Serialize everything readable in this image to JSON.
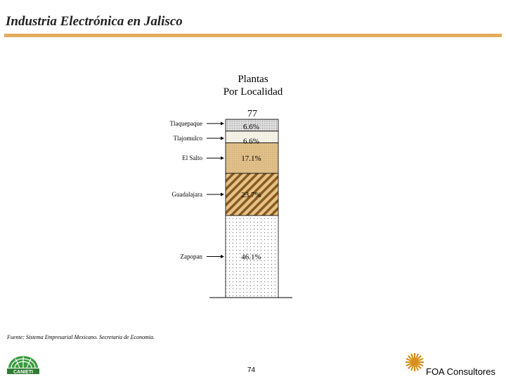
{
  "slide": {
    "title": "Industria Electrónica en Jalisco",
    "source_note": "Fuente: Sistema Empresarial Mexicano. Secretaria de Economia.",
    "page_number": "74",
    "brand_right": "FOA Consultores",
    "brand_left": "CANIETI"
  },
  "colors": {
    "title_rule": "#e3ad5c",
    "tan": "#e3c28b",
    "brown": "#8a5a1c",
    "fill_light": "#f6f3ea"
  },
  "chart_data": {
    "type": "bar",
    "stacked": true,
    "title": "Plantas",
    "subtitle": "Por Localidad",
    "total_label": "77",
    "total": 77,
    "segments": [
      {
        "label": "Zapopan",
        "value": 46.1,
        "value_label": "46.1%",
        "pattern": "sparse-dots"
      },
      {
        "label": "Guadalajara",
        "value": 23.7,
        "value_label": "23.7%",
        "pattern": "diagonal-brown"
      },
      {
        "label": "El Salto",
        "value": 17.1,
        "value_label": "17.1%",
        "pattern": "tan-dense"
      },
      {
        "label": "Tlajomulco",
        "value": 6.6,
        "value_label": "6.6%",
        "pattern": "light-grid"
      },
      {
        "label": "Tlaquepaque",
        "value": 6.6,
        "value_label": "6.6%",
        "pattern": "dense-dots"
      }
    ]
  }
}
